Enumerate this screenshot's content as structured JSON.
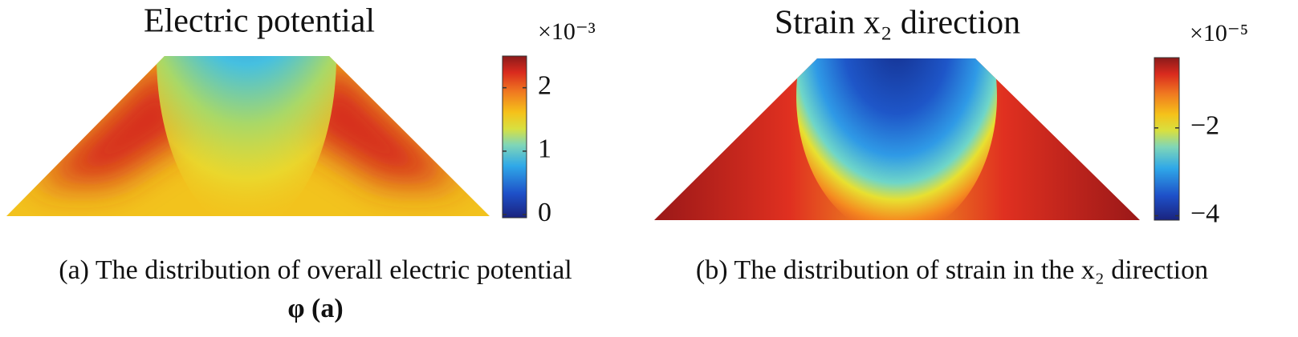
{
  "chart_data": [
    {
      "type": "field",
      "title": "Electric potential",
      "colorbar": {
        "multiplier": "×10⁻³",
        "lim": [
          -0.05,
          2.5
        ],
        "ticks": [
          0,
          1,
          2
        ]
      },
      "caption": [
        "(a)  The distribution of overall electric potential",
        "φ (a)"
      ]
    },
    {
      "type": "field",
      "title": "Strain x₂ direction",
      "colorbar": {
        "multiplier": "×10⁻⁵",
        "lim": [
          -4.1,
          -0.4
        ],
        "ticks": [
          {
            "value": -4,
            "label": "−4"
          },
          {
            "value": -2,
            "label": "−2"
          }
        ]
      },
      "caption": [
        "(b)  The distribution of strain in the x₂ direction"
      ]
    }
  ]
}
